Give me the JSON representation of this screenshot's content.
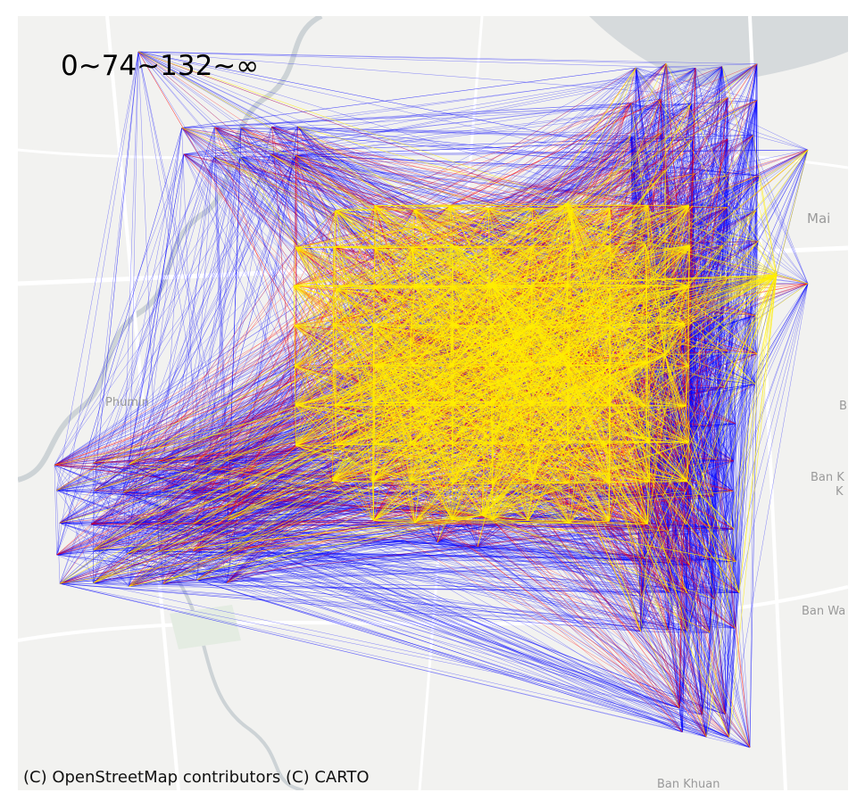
{
  "legend": {
    "text": "0~74~132~∞"
  },
  "attribution": "(C) OpenStreetMap contributors (C) CARTO",
  "places": [
    {
      "id": "mai",
      "text": "Mai"
    },
    {
      "id": "phumin",
      "text": "Phumin"
    },
    {
      "id": "b-right",
      "text": "B"
    },
    {
      "id": "ban-k",
      "text": "Ban K"
    },
    {
      "id": "k-right",
      "text": "K"
    },
    {
      "id": "ban-wa",
      "text": "Ban Wa"
    },
    {
      "id": "ban-khuan",
      "text": "Ban Khuan"
    }
  ],
  "colors": {
    "low": "#0000ff",
    "mid": "#ff0000",
    "high": "#ffee00",
    "basemap": "#f2f2f0",
    "roads": "#ffffff",
    "water": "#d6dadc"
  }
}
